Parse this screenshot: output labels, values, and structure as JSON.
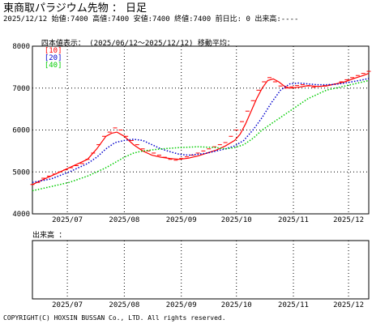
{
  "header": {
    "title": "東商取パラジウム先物 ： 日足",
    "info": "2025/12/12 始値:7400 高値:7400 安値:7400 終値:7400 前日比: 0 出来高:----"
  },
  "legend": {
    "prefix": "四本値表示： (2025/06/12～2025/12/12) 移動平均：",
    "items": [
      {
        "label": "[10]",
        "color": "#ff0000"
      },
      {
        "label": "[20]",
        "color": "#0000cc"
      },
      {
        "label": "[40]",
        "color": "#00cc00"
      }
    ]
  },
  "volume": {
    "label": "出来高 ："
  },
  "footer": {
    "copyright": "COPYRIGHT(C) HOXSIN BUSSAN Co., LTD. All rights reserved."
  },
  "chart_data": {
    "type": "line",
    "ylim": [
      4000,
      8000
    ],
    "y_ticks": [
      4000,
      5000,
      6000,
      7000,
      8000
    ],
    "x_ticks": [
      "2025/07",
      "2025/08",
      "2025/09",
      "2025/10",
      "2025/11",
      "2025/12"
    ],
    "x_tick_days": [
      19,
      50,
      81,
      111,
      142,
      172
    ],
    "day_span": [
      0,
      183
    ],
    "grid": true,
    "price_color": "#ff0000",
    "price": [
      [
        0,
        4700
      ],
      [
        3,
        4750
      ],
      [
        6,
        4850
      ],
      [
        9,
        4900
      ],
      [
        12,
        4950
      ],
      [
        15,
        5000
      ],
      [
        18,
        5050
      ],
      [
        21,
        5100
      ],
      [
        24,
        5150
      ],
      [
        27,
        5200
      ],
      [
        30,
        5300
      ],
      [
        33,
        5450
      ],
      [
        36,
        5650
      ],
      [
        39,
        5850
      ],
      [
        42,
        5950
      ],
      [
        45,
        6050
      ],
      [
        48,
        6000
      ],
      [
        51,
        5850
      ],
      [
        54,
        5750
      ],
      [
        57,
        5650
      ],
      [
        60,
        5550
      ],
      [
        63,
        5500
      ],
      [
        66,
        5450
      ],
      [
        69,
        5400
      ],
      [
        72,
        5350
      ],
      [
        75,
        5300
      ],
      [
        78,
        5280
      ],
      [
        81,
        5320
      ],
      [
        84,
        5360
      ],
      [
        87,
        5400
      ],
      [
        90,
        5450
      ],
      [
        93,
        5500
      ],
      [
        96,
        5550
      ],
      [
        99,
        5600
      ],
      [
        102,
        5650
      ],
      [
        105,
        5700
      ],
      [
        108,
        5850
      ],
      [
        111,
        6000
      ],
      [
        114,
        6200
      ],
      [
        117,
        6450
      ],
      [
        120,
        6700
      ],
      [
        123,
        6950
      ],
      [
        126,
        7150
      ],
      [
        129,
        7250
      ],
      [
        132,
        7150
      ],
      [
        135,
        7050
      ],
      [
        138,
        7000
      ],
      [
        141,
        7030
      ],
      [
        144,
        7060
      ],
      [
        147,
        7080
      ],
      [
        150,
        7050
      ],
      [
        153,
        7020
      ],
      [
        156,
        7040
      ],
      [
        159,
        7060
      ],
      [
        162,
        7080
      ],
      [
        165,
        7100
      ],
      [
        168,
        7150
      ],
      [
        171,
        7200
      ],
      [
        174,
        7250
      ],
      [
        177,
        7300
      ],
      [
        180,
        7350
      ],
      [
        183,
        7400
      ]
    ],
    "series": [
      {
        "name": "[10]",
        "color": "#ff0000",
        "style": "solid",
        "values": [
          [
            0,
            4700
          ],
          [
            5,
            4800
          ],
          [
            10,
            4900
          ],
          [
            15,
            5000
          ],
          [
            20,
            5100
          ],
          [
            25,
            5200
          ],
          [
            30,
            5300
          ],
          [
            35,
            5550
          ],
          [
            40,
            5850
          ],
          [
            43,
            5920
          ],
          [
            46,
            5950
          ],
          [
            50,
            5850
          ],
          [
            55,
            5650
          ],
          [
            60,
            5500
          ],
          [
            65,
            5400
          ],
          [
            70,
            5350
          ],
          [
            75,
            5320
          ],
          [
            80,
            5300
          ],
          [
            85,
            5330
          ],
          [
            90,
            5380
          ],
          [
            95,
            5450
          ],
          [
            100,
            5520
          ],
          [
            105,
            5620
          ],
          [
            110,
            5750
          ],
          [
            113,
            5900
          ],
          [
            116,
            6150
          ],
          [
            119,
            6450
          ],
          [
            122,
            6750
          ],
          [
            125,
            7000
          ],
          [
            128,
            7180
          ],
          [
            131,
            7220
          ],
          [
            134,
            7150
          ],
          [
            137,
            7050
          ],
          [
            140,
            7000
          ],
          [
            145,
            7020
          ],
          [
            150,
            7060
          ],
          [
            155,
            7040
          ],
          [
            160,
            7050
          ],
          [
            165,
            7100
          ],
          [
            170,
            7150
          ],
          [
            175,
            7230
          ],
          [
            180,
            7300
          ],
          [
            183,
            7350
          ]
        ]
      },
      {
        "name": "[20]",
        "color": "#0000cc",
        "style": "dotted",
        "values": [
          [
            0,
            4750
          ],
          [
            10,
            4830
          ],
          [
            20,
            5000
          ],
          [
            30,
            5200
          ],
          [
            35,
            5350
          ],
          [
            40,
            5550
          ],
          [
            45,
            5700
          ],
          [
            50,
            5750
          ],
          [
            55,
            5780
          ],
          [
            60,
            5750
          ],
          [
            65,
            5650
          ],
          [
            70,
            5550
          ],
          [
            75,
            5480
          ],
          [
            80,
            5420
          ],
          [
            85,
            5400
          ],
          [
            90,
            5420
          ],
          [
            95,
            5450
          ],
          [
            100,
            5500
          ],
          [
            105,
            5550
          ],
          [
            110,
            5620
          ],
          [
            115,
            5750
          ],
          [
            120,
            6000
          ],
          [
            125,
            6300
          ],
          [
            130,
            6650
          ],
          [
            135,
            6950
          ],
          [
            140,
            7100
          ],
          [
            145,
            7120
          ],
          [
            150,
            7100
          ],
          [
            155,
            7080
          ],
          [
            160,
            7080
          ],
          [
            165,
            7090
          ],
          [
            170,
            7120
          ],
          [
            175,
            7160
          ],
          [
            180,
            7200
          ],
          [
            183,
            7230
          ]
        ]
      },
      {
        "name": "[40]",
        "color": "#00cc00",
        "style": "dotted",
        "values": [
          [
            0,
            4550
          ],
          [
            10,
            4650
          ],
          [
            20,
            4750
          ],
          [
            30,
            4900
          ],
          [
            40,
            5100
          ],
          [
            50,
            5350
          ],
          [
            55,
            5450
          ],
          [
            60,
            5500
          ],
          [
            70,
            5550
          ],
          [
            80,
            5580
          ],
          [
            90,
            5600
          ],
          [
            100,
            5580
          ],
          [
            105,
            5550
          ],
          [
            110,
            5580
          ],
          [
            115,
            5650
          ],
          [
            120,
            5800
          ],
          [
            125,
            6000
          ],
          [
            130,
            6150
          ],
          [
            135,
            6300
          ],
          [
            140,
            6450
          ],
          [
            145,
            6600
          ],
          [
            150,
            6750
          ],
          [
            155,
            6850
          ],
          [
            160,
            6950
          ],
          [
            165,
            7000
          ],
          [
            170,
            7050
          ],
          [
            175,
            7100
          ],
          [
            180,
            7150
          ],
          [
            183,
            7180
          ]
        ]
      }
    ]
  }
}
